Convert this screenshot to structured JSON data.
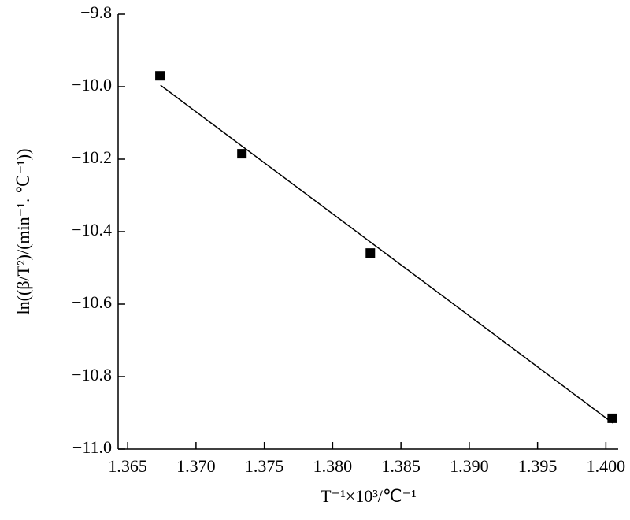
{
  "chart_data": {
    "type": "scatter",
    "xlabel": "T⁻¹×10³/℃⁻¹",
    "ylabel": "ln((β/T²)/(min⁻¹. ℃⁻¹))",
    "x": [
      1.36736,
      1.37336,
      1.38276,
      1.40046
    ],
    "values": [
      -9.97,
      -10.185,
      -10.459,
      -10.915
    ],
    "color": "#000000",
    "fit": {
      "x": [
        1.3674,
        1.4005
      ],
      "values": [
        -9.996,
        -10.928
      ],
      "color": "#000000"
    },
    "xlim": [
      1.3643,
      1.4009
    ],
    "ylim": [
      -11.0,
      -9.8
    ],
    "xticks": [
      1.365,
      {
        "value": 1.37,
        "label": "1.370"
      },
      1.375,
      {
        "value": 1.38,
        "label": "1.380"
      },
      1.385,
      {
        "value": 1.39,
        "label": "1.390"
      },
      1.395,
      {
        "value": 1.4,
        "label": "1.400"
      }
    ],
    "yticks": [
      {
        "value": -11.0,
        "label": "−11.0"
      },
      {
        "value": -10.8,
        "label": "−10.8"
      },
      {
        "value": -10.6,
        "label": "−10.6"
      },
      {
        "value": -10.4,
        "label": "−10.4"
      },
      {
        "value": -10.2,
        "label": "−10.2"
      },
      {
        "value": -10.0,
        "label": "−10.0"
      },
      {
        "value": -9.8,
        "label": "−9.8"
      }
    ],
    "grid": false
  }
}
